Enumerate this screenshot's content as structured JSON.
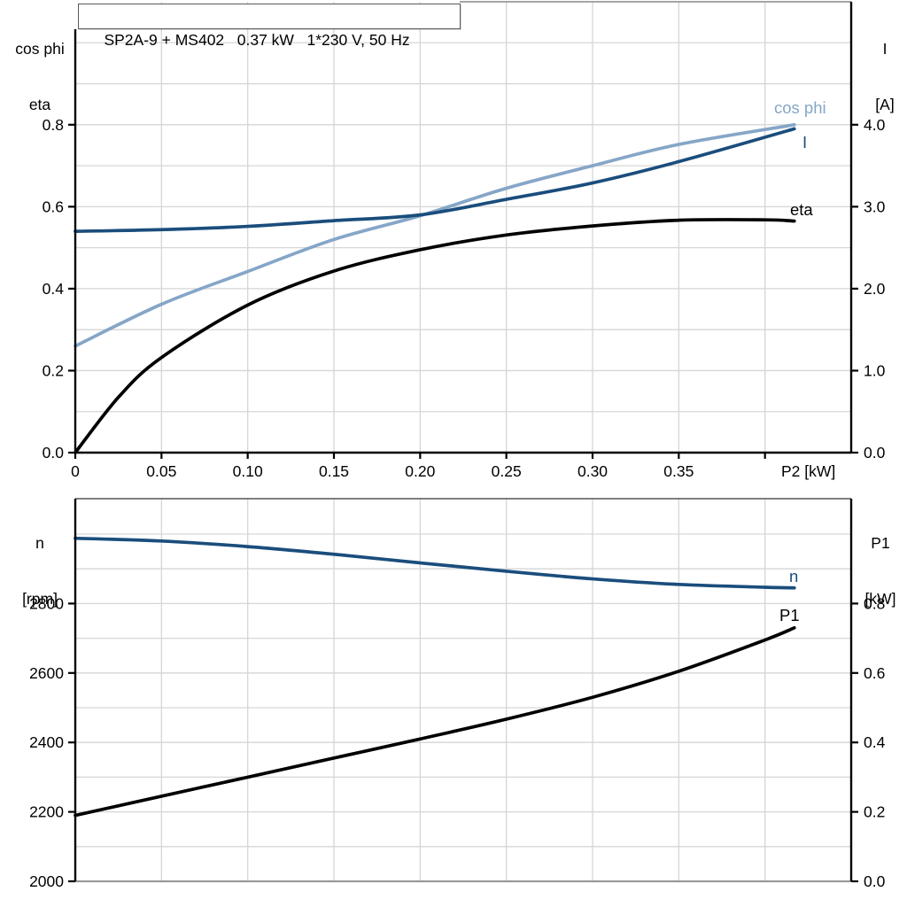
{
  "title_box": "SP2A-9 + MS402   0.37 kW   1*230 V, 50 Hz",
  "axis_corner_labels": {
    "top_left_line1": "cos phi",
    "top_left_line2": "eta",
    "top_right_line1": "I",
    "top_right_line2": "[A]",
    "bottom_left_line1": "n",
    "bottom_left_line2": "[rpm]",
    "bottom_right_line1": "P1",
    "bottom_right_line2": "[kW]"
  },
  "colors": {
    "navy": "#1a4d7c",
    "light_blue": "#85a6c7",
    "black": "#000000",
    "grid": "#d6d6d6",
    "frame_gray": "#9a9a9a",
    "frame_dark": "#555555"
  },
  "chart_data": [
    {
      "type": "line",
      "title": "SP2A-9 + MS402  0.37 kW  1*230 V, 50 Hz",
      "xlabel": "P2 [kW]",
      "x_axis": {
        "label": "P2 [kW]",
        "range": [
          0,
          0.45
        ],
        "ticks": [
          0,
          0.05,
          0.1,
          0.15,
          0.2,
          0.25,
          0.3,
          0.35,
          0.4
        ],
        "tick_labels": [
          "0",
          "0.05",
          "0.10",
          "0.15",
          "0.20",
          "0.25",
          "0.30",
          "0.35",
          ""
        ]
      },
      "left_axis": {
        "name": "cos phi / eta",
        "range": [
          0,
          1.1
        ],
        "ticks": [
          0.0,
          0.2,
          0.4,
          0.6,
          0.8
        ],
        "tick_labels": [
          "0.0",
          "0.2",
          "0.4",
          "0.6",
          "0.8"
        ]
      },
      "right_axis": {
        "name": "I [A]",
        "range": [
          0,
          5.5
        ],
        "ticks": [
          0,
          1,
          2,
          3,
          4
        ],
        "tick_labels": [
          "0.0",
          "1.0",
          "2.0",
          "3.0",
          "4.0"
        ]
      },
      "grid": true,
      "grid_x": [
        0.05,
        0.1,
        0.15,
        0.2,
        0.25,
        0.3,
        0.35,
        0.4
      ],
      "grid_y_left": [
        0.1,
        0.2,
        0.3,
        0.4,
        0.5,
        0.6,
        0.7,
        0.8,
        0.9,
        1.0
      ],
      "series": [
        {
          "name": "cos phi",
          "axis": "left",
          "color": "light_blue",
          "points": [
            [
              0,
              0.26
            ],
            [
              0.05,
              0.362
            ],
            [
              0.1,
              0.442
            ],
            [
              0.15,
              0.52
            ],
            [
              0.2,
              0.578
            ],
            [
              0.25,
              0.645
            ],
            [
              0.3,
              0.7
            ],
            [
              0.35,
              0.752
            ],
            [
              0.417,
              0.8
            ]
          ],
          "label": {
            "text": "cos phi",
            "x": 874,
            "y": 128,
            "anchor": "start"
          }
        },
        {
          "name": "I",
          "axis": "right",
          "color": "navy",
          "points": [
            [
              0,
              2.7
            ],
            [
              0.05,
              2.72
            ],
            [
              0.1,
              2.76
            ],
            [
              0.15,
              2.83
            ],
            [
              0.2,
              2.9
            ],
            [
              0.25,
              3.09
            ],
            [
              0.3,
              3.29
            ],
            [
              0.35,
              3.55
            ],
            [
              0.417,
              3.95
            ]
          ],
          "label": {
            "text": "I",
            "x": 906,
            "y": 167,
            "anchor": "start"
          }
        },
        {
          "name": "eta",
          "axis": "left",
          "color": "black",
          "points": [
            [
              0,
              0.0
            ],
            [
              0.025,
              0.135
            ],
            [
              0.05,
              0.232
            ],
            [
              0.1,
              0.36
            ],
            [
              0.15,
              0.443
            ],
            [
              0.2,
              0.495
            ],
            [
              0.25,
              0.531
            ],
            [
              0.3,
              0.553
            ],
            [
              0.35,
              0.567
            ],
            [
              0.4,
              0.568
            ],
            [
              0.417,
              0.565
            ]
          ],
          "label": {
            "text": "eta",
            "x": 892,
            "y": 243,
            "anchor": "start"
          }
        }
      ]
    },
    {
      "type": "line",
      "title": "",
      "xlabel": "",
      "x_axis": {
        "label": "",
        "range": [
          0,
          0.45
        ],
        "ticks": null,
        "tick_labels": null
      },
      "left_axis": {
        "name": "n [rpm]",
        "range": [
          2000,
          3102
        ],
        "ticks": [
          2000,
          2200,
          2400,
          2600,
          2800
        ],
        "tick_labels": [
          "2000",
          "2200",
          "2400",
          "2600",
          "2800"
        ]
      },
      "right_axis": {
        "name": "P1 [kW]",
        "range": [
          0,
          1.102
        ],
        "ticks": [
          0.0,
          0.2,
          0.4,
          0.6,
          0.8
        ],
        "tick_labels": [
          "0.0",
          "0.2",
          "0.4",
          "0.6",
          "0.8"
        ]
      },
      "grid": true,
      "grid_x": [
        0.05,
        0.1,
        0.15,
        0.2,
        0.25,
        0.3,
        0.35,
        0.4
      ],
      "grid_y_left": [
        2100,
        2200,
        2300,
        2400,
        2500,
        2600,
        2700,
        2800,
        2900,
        3000
      ],
      "series": [
        {
          "name": "n",
          "axis": "left",
          "color": "navy",
          "points": [
            [
              0,
              2988
            ],
            [
              0.05,
              2980
            ],
            [
              0.1,
              2964
            ],
            [
              0.15,
              2942
            ],
            [
              0.2,
              2917
            ],
            [
              0.25,
              2893
            ],
            [
              0.3,
              2871
            ],
            [
              0.35,
              2855
            ],
            [
              0.4,
              2847
            ],
            [
              0.417,
              2845
            ]
          ],
          "label": {
            "text": "n",
            "x": 891,
            "y": 657,
            "anchor": "start"
          }
        },
        {
          "name": "P1",
          "axis": "right",
          "color": "black",
          "points": [
            [
              0,
              0.19
            ],
            [
              0.05,
              0.245
            ],
            [
              0.1,
              0.3
            ],
            [
              0.15,
              0.355
            ],
            [
              0.2,
              0.41
            ],
            [
              0.25,
              0.467
            ],
            [
              0.3,
              0.53
            ],
            [
              0.35,
              0.605
            ],
            [
              0.4,
              0.695
            ],
            [
              0.417,
              0.73
            ]
          ],
          "label": {
            "text": "P1",
            "x": 880,
            "y": 701,
            "anchor": "start"
          }
        }
      ]
    }
  ]
}
